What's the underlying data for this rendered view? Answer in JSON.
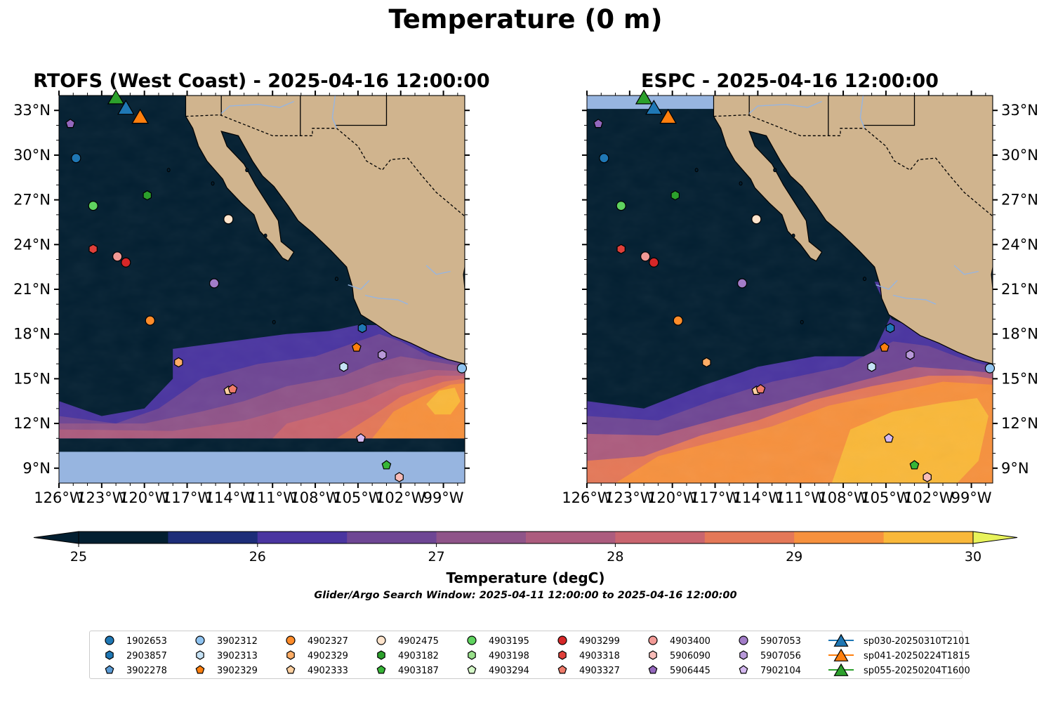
{
  "suptitle": "Temperature (0 m)",
  "panels": [
    {
      "id": "rtofs",
      "title": "RTOFS (West Coast) - 2025-04-16 12:00:00",
      "label_side": "left"
    },
    {
      "id": "espc",
      "title": "ESPC - 2025-04-16 12:00:00",
      "label_side": "right"
    }
  ],
  "lon_ticks": [
    "126°W",
    "123°W",
    "120°W",
    "117°W",
    "114°W",
    "111°W",
    "108°W",
    "105°W",
    "102°W",
    "99°W"
  ],
  "lat_ticks": [
    "33°N",
    "30°N",
    "27°N",
    "24°N",
    "21°N",
    "18°N",
    "15°N",
    "12°N",
    "9°N"
  ],
  "colorbar": {
    "ticks": [
      "25",
      "26",
      "27",
      "28",
      "29",
      "30"
    ],
    "label": "Temperature (degC)",
    "extend": "both",
    "colors": [
      "#031f31",
      "#1d2d78",
      "#4a35a0",
      "#6e4694",
      "#8f5489",
      "#ac5c7e",
      "#c9656f",
      "#e47858",
      "#f6913e",
      "#f9b83a"
    ],
    "under_color": "#031f31",
    "over_color": "#e8f35b"
  },
  "caption": "Glider/Argo Search Window: 2025-04-11 12:00:00 to 2025-04-16 12:00:00",
  "colors": {
    "land": "#d0b48e",
    "no_data": "#97b5e0",
    "river": "#97b5e0"
  },
  "legend": {
    "columns": [
      [
        {
          "label": "1902653",
          "marker": "circle",
          "color": "#1f77b4"
        },
        {
          "label": "2903857",
          "marker": "hexagon",
          "color": "#1f77b4"
        },
        {
          "label": "3902278",
          "marker": "pentagon",
          "color": "#5b9bd5"
        }
      ],
      [
        {
          "label": "3902312",
          "marker": "circle",
          "color": "#8fc3f0"
        },
        {
          "label": "3902313",
          "marker": "hexagon",
          "color": "#c6e2f5"
        },
        {
          "label": "3902329",
          "marker": "pentagon",
          "color": "#ff7f0e"
        }
      ],
      [
        {
          "label": "4902327",
          "marker": "circle",
          "color": "#ff8c2a"
        },
        {
          "label": "4902329",
          "marker": "hexagon",
          "color": "#ffad66"
        },
        {
          "label": "4902333",
          "marker": "pentagon",
          "color": "#ffd0a0"
        }
      ],
      [
        {
          "label": "4902475",
          "marker": "circle",
          "color": "#ffe4cc"
        },
        {
          "label": "4903182",
          "marker": "hexagon",
          "color": "#2ca02c"
        },
        {
          "label": "4903187",
          "marker": "pentagon",
          "color": "#37b637"
        }
      ],
      [
        {
          "label": "4903195",
          "marker": "circle",
          "color": "#5fd35f"
        },
        {
          "label": "4903198",
          "marker": "hexagon",
          "color": "#98df8a"
        },
        {
          "label": "4903294",
          "marker": "pentagon",
          "color": "#d5f8c8"
        }
      ],
      [
        {
          "label": "4903299",
          "marker": "circle",
          "color": "#d62728"
        },
        {
          "label": "4903318",
          "marker": "hexagon",
          "color": "#e0403a"
        },
        {
          "label": "4903327",
          "marker": "pentagon",
          "color": "#ef7b6a"
        }
      ],
      [
        {
          "label": "4903400",
          "marker": "circle",
          "color": "#f29a96"
        },
        {
          "label": "5906090",
          "marker": "hexagon",
          "color": "#f8bcb8"
        },
        {
          "label": "5906445",
          "marker": "pentagon",
          "color": "#9467bd"
        }
      ],
      [
        {
          "label": "5907053",
          "marker": "circle",
          "color": "#a27cc8"
        },
        {
          "label": "5907056",
          "marker": "hexagon",
          "color": "#b899d9"
        },
        {
          "label": "7902104",
          "marker": "pentagon",
          "color": "#d4b8f0"
        }
      ],
      [
        {
          "label": "sp030-20250310T2101",
          "marker": "triangle",
          "color": "#1f77b4"
        },
        {
          "label": "sp041-20250224T1815",
          "marker": "triangle",
          "color": "#ff7f0e"
        },
        {
          "label": "sp055-20250204T1600",
          "marker": "triangle",
          "color": "#2ca02c"
        }
      ]
    ]
  },
  "markers": [
    {
      "label": "1902653",
      "lon": -124.8,
      "lat": 29.8
    },
    {
      "label": "3902312",
      "lon": -97.7,
      "lat": 15.7
    },
    {
      "label": "2903857",
      "lon": -104.7,
      "lat": 18.4
    },
    {
      "label": "3902313",
      "lon": -106.0,
      "lat": 15.8
    },
    {
      "label": "3902329",
      "lon": -105.1,
      "lat": 17.1
    },
    {
      "label": "4902327",
      "lon": -119.6,
      "lat": 18.9
    },
    {
      "label": "4902329",
      "lon": -117.6,
      "lat": 16.1
    },
    {
      "label": "4902333",
      "lon": -114.1,
      "lat": 14.2
    },
    {
      "label": "4902475",
      "lon": -114.1,
      "lat": 25.7
    },
    {
      "label": "4903182",
      "lon": -119.8,
      "lat": 27.3
    },
    {
      "label": "4903187",
      "lon": -103.0,
      "lat": 9.2
    },
    {
      "label": "4903195",
      "lon": -123.6,
      "lat": 26.6
    },
    {
      "label": "4903299",
      "lon": -121.3,
      "lat": 22.8
    },
    {
      "label": "4903318",
      "lon": -123.6,
      "lat": 23.7
    },
    {
      "label": "4903327",
      "lon": -113.8,
      "lat": 14.3
    },
    {
      "label": "4903400",
      "lon": -121.9,
      "lat": 23.2
    },
    {
      "label": "5906445",
      "lon": -125.2,
      "lat": 32.1
    },
    {
      "label": "5907053",
      "lon": -115.1,
      "lat": 21.4
    },
    {
      "label": "5907056",
      "lon": -103.3,
      "lat": 16.6
    },
    {
      "label": "7902104",
      "lon": -104.8,
      "lat": 11.0
    },
    {
      "label": "5906090",
      "lon": -102.1,
      "lat": 8.4
    },
    {
      "label": "sp030-20250310T2101",
      "lon": -121.3,
      "lat": 33.2
    },
    {
      "label": "sp041-20250224T1815",
      "lon": -120.3,
      "lat": 32.6
    },
    {
      "label": "sp055-20250204T1600",
      "lon": -122.0,
      "lat": 33.9
    }
  ]
}
